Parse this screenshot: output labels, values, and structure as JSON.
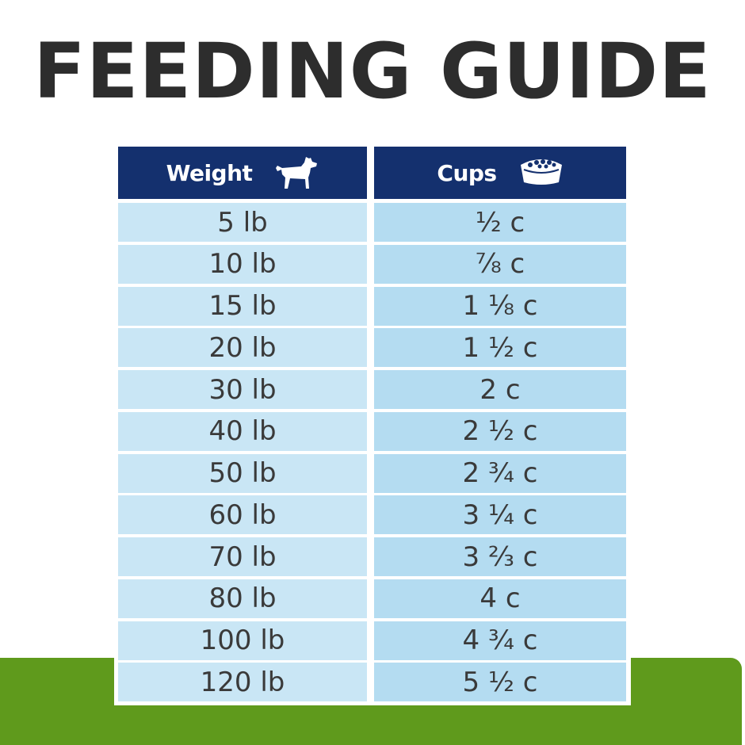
{
  "title": "FEEDING GUIDE",
  "colors": {
    "header_bg": "#14306e",
    "weight_cell_bg": "#c9e6f5",
    "cups_cell_bg": "#b4dcf1",
    "green_band": "#5f9a1c",
    "title_text": "#2d2d2d"
  },
  "table": {
    "headers": {
      "weight": {
        "label": "Weight",
        "icon": "dog-icon"
      },
      "cups": {
        "label": "Cups",
        "icon": "food-bowl-icon"
      }
    },
    "rows": [
      {
        "weight": "5 lb",
        "cups": "½ c"
      },
      {
        "weight": "10 lb",
        "cups": "⅞ c"
      },
      {
        "weight": "15 lb",
        "cups": "1 ⅛ c"
      },
      {
        "weight": "20 lb",
        "cups": "1 ½ c"
      },
      {
        "weight": "30 lb",
        "cups": "2 c"
      },
      {
        "weight": "40 lb",
        "cups": "2 ½ c"
      },
      {
        "weight": "50 lb",
        "cups": "2 ¾ c"
      },
      {
        "weight": "60 lb",
        "cups": "3 ¼ c"
      },
      {
        "weight": "70 lb",
        "cups": "3 ⅔ c"
      },
      {
        "weight": "80 lb",
        "cups": "4 c"
      },
      {
        "weight": "100 lb",
        "cups": "4 ¾ c"
      },
      {
        "weight": "120 lb",
        "cups": "5 ½ c"
      }
    ]
  }
}
